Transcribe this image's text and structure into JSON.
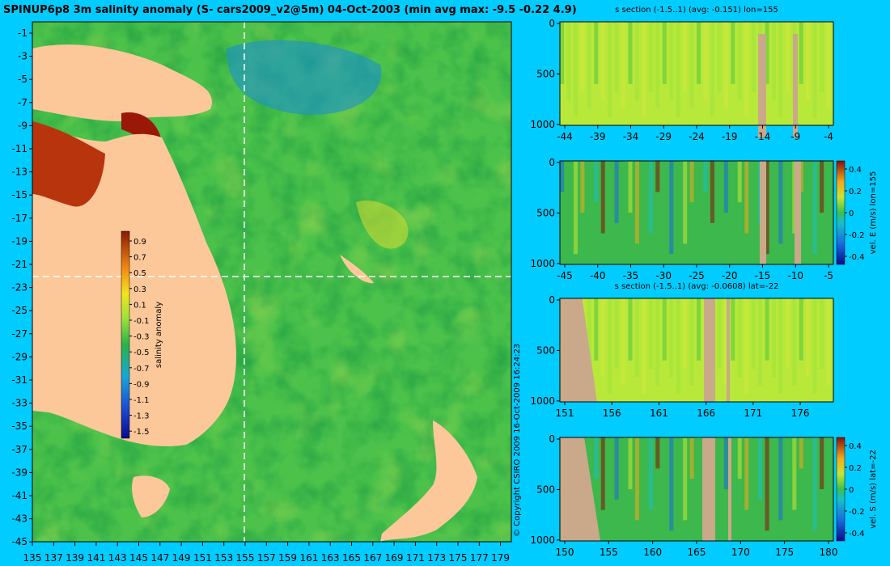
{
  "map": {
    "title": "SPINUP6p8 3m salinity anomaly (S- cars2009_v2@5m) 04-Oct-2003 (min avg max: -9.5 -0.22 4.9)",
    "colorbar_label": "salinity anomaly",
    "colorbar_ticks": [
      "0.9",
      "0.7",
      "0.5",
      "0.3",
      "0.1",
      "-0.1",
      "-0.3",
      "-0.5",
      "-0.7",
      "-0.9",
      "-1.1",
      "-1.3",
      "-1.5"
    ],
    "y_ticks": [
      "-1",
      "-3",
      "-5",
      "-7",
      "-9",
      "-11",
      "-13",
      "-15",
      "-17",
      "-19",
      "-21",
      "-23",
      "-25",
      "-27",
      "-29",
      "-31",
      "-33",
      "-35",
      "-37",
      "-39",
      "-41",
      "-43",
      "-45"
    ],
    "x_ticks": [
      "135",
      "137",
      "139",
      "141",
      "143",
      "145",
      "147",
      "149",
      "151",
      "153",
      "155",
      "157",
      "159",
      "161",
      "163",
      "165",
      "167",
      "169",
      "171",
      "173",
      "175",
      "177",
      "179"
    ],
    "copyright": "© Copyright CSIRO 2009  16-Oct-2009 16:24:23"
  },
  "chart_data": [
    {
      "type": "heatmap",
      "title": "SPINUP6p8 3m salinity anomaly (S- cars2009_v2@5m) 04-Oct-2003 (min avg max: -9.5 -0.22 4.9)",
      "x": "longitude",
      "xlim": [
        135,
        180
      ],
      "ylim": [
        -45,
        0
      ],
      "colorbar": "salinity anomaly",
      "clim": [
        -1.5,
        0.9
      ],
      "stats": {
        "min": -9.5,
        "avg": -0.22,
        "max": 4.9
      },
      "section_lines": {
        "lon": 155,
        "lat": -22
      }
    },
    {
      "type": "heatmap",
      "title": "s section (-1.5..1) (avg: -0.151) lon=155",
      "xticks": [
        "-44",
        "-39",
        "-34",
        "-29",
        "-24",
        "-19",
        "-14",
        "-9",
        "-4"
      ],
      "yticks": [
        "0",
        "500",
        "1000"
      ],
      "ylim": [
        0,
        1050
      ],
      "clim": [
        -1.5,
        1
      ],
      "avg": -0.151
    },
    {
      "type": "heatmap",
      "title": "",
      "xticks": [
        "-45",
        "-40",
        "-35",
        "-30",
        "-25",
        "-20",
        "-15",
        "-10",
        "-5"
      ],
      "yticks": [
        "0",
        "500",
        "1000"
      ],
      "colorbar": "vel. E (m/s) lon=155",
      "cticks": [
        "0.4",
        "0.2",
        "0",
        "-0.2",
        "-0.4"
      ],
      "clim": [
        -0.45,
        0.45
      ]
    },
    {
      "type": "heatmap",
      "title": "s section (-1.5..1) (avg: -0.0608) lat=-22",
      "xticks": [
        "151",
        "156",
        "161",
        "166",
        "171",
        "176"
      ],
      "yticks": [
        "0",
        "500",
        "1000"
      ],
      "clim": [
        -1.5,
        1
      ],
      "avg": -0.0608
    },
    {
      "type": "heatmap",
      "title": "",
      "xticks": [
        "150",
        "155",
        "160",
        "165",
        "170",
        "175",
        "180"
      ],
      "yticks": [
        "0",
        "500",
        "1000"
      ],
      "colorbar": "vel. S (m/s) lat=-22",
      "cticks": [
        "0.4",
        "0.2",
        "0",
        "-0.2",
        "-0.4"
      ],
      "clim": [
        -0.45,
        0.45
      ]
    }
  ]
}
